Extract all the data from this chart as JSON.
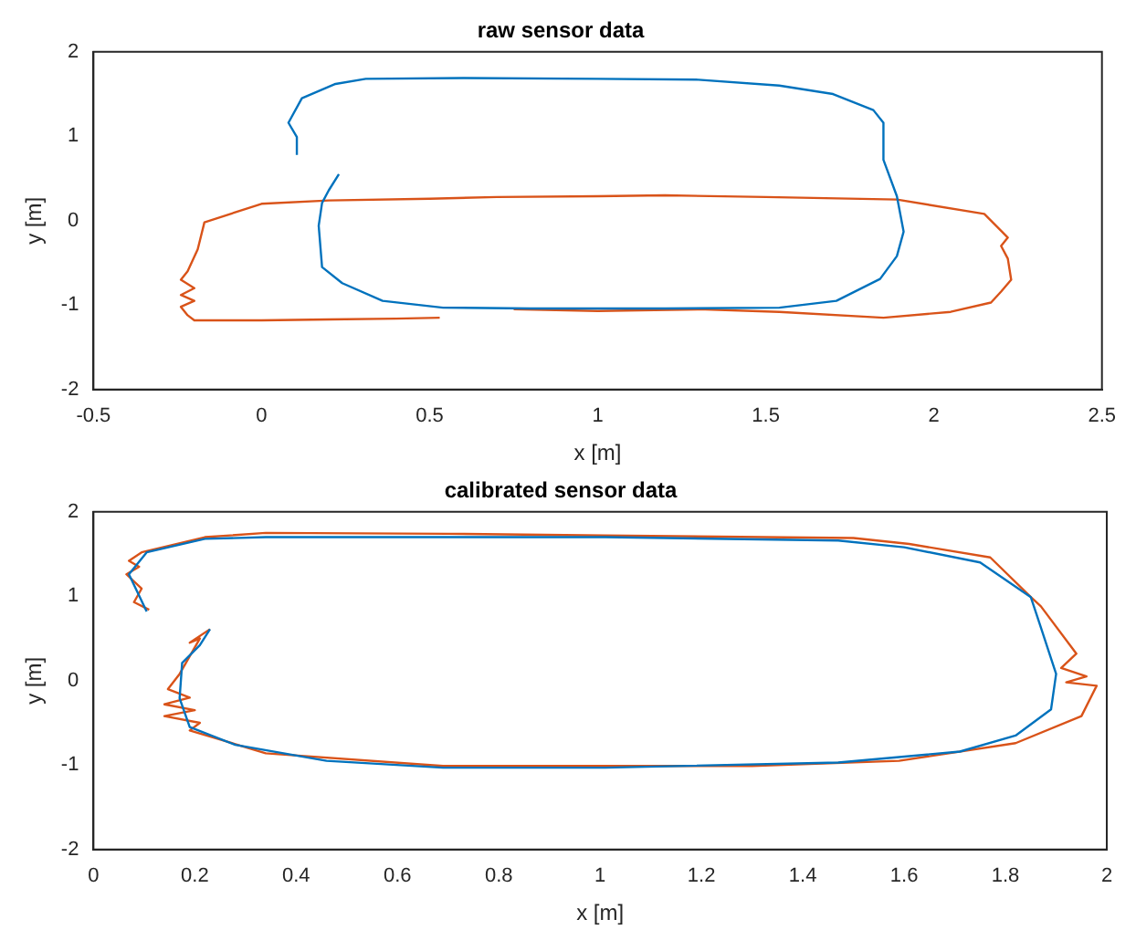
{
  "chart_data": [
    {
      "type": "line",
      "title": "raw sensor data",
      "xlabel": "x [m]",
      "ylabel": "y [m]",
      "xlim": [
        -0.5,
        2.5
      ],
      "ylim": [
        -2,
        2
      ],
      "xticks": [
        -0.5,
        0,
        0.5,
        1,
        1.5,
        2,
        2.5
      ],
      "yticks": [
        -2,
        -1,
        0,
        1,
        2
      ],
      "series": [
        {
          "color": "#0072bd",
          "x": [
            0.105,
            0.105,
            0.08,
            0.12,
            0.22,
            0.31,
            0.6,
            1.0,
            1.3,
            1.54,
            1.7,
            1.82,
            1.85,
            1.85,
            1.89,
            1.91,
            1.89,
            1.84,
            1.71,
            1.54,
            1.2,
            0.8,
            0.54,
            0.36,
            0.24,
            0.18,
            0.17,
            0.18,
            0.2,
            0.23
          ],
          "values": [
            0.78,
            0.99,
            1.16,
            1.45,
            1.62,
            1.68,
            1.69,
            1.68,
            1.67,
            1.6,
            1.5,
            1.31,
            1.16,
            0.72,
            0.29,
            -0.13,
            -0.42,
            -0.69,
            -0.95,
            -1.03,
            -1.04,
            -1.04,
            -1.03,
            -0.95,
            -0.74,
            -0.55,
            -0.06,
            0.21,
            0.36,
            0.55
          ]
        },
        {
          "color": "#d95319",
          "x": [
            0.75,
            1.0,
            1.3,
            1.54,
            1.85,
            2.05,
            2.17,
            2.2,
            2.23,
            2.22,
            2.2,
            2.22,
            2.15,
            1.89,
            1.5,
            1.2,
            1.0,
            0.7,
            0.5,
            0.2,
            0,
            -0.17,
            -0.19,
            -0.22,
            -0.24,
            -0.2,
            -0.24,
            -0.2,
            -0.24,
            -0.22,
            -0.2,
            0.0,
            0.2,
            0.4,
            0.53
          ],
          "values": [
            -1.05,
            -1.07,
            -1.05,
            -1.08,
            -1.15,
            -1.08,
            -0.97,
            -0.84,
            -0.7,
            -0.45,
            -0.3,
            -0.2,
            0.08,
            0.25,
            0.28,
            0.3,
            0.29,
            0.28,
            0.26,
            0.24,
            0.2,
            -0.02,
            -0.34,
            -0.6,
            -0.7,
            -0.8,
            -0.88,
            -0.95,
            -1.02,
            -1.12,
            -1.18,
            -1.18,
            -1.17,
            -1.16,
            -1.15
          ]
        }
      ]
    },
    {
      "type": "line",
      "title": "calibrated sensor data",
      "xlabel": "x [m]",
      "ylabel": "y [m]",
      "xlim": [
        0,
        2
      ],
      "ylim": [
        -2,
        2
      ],
      "xticks": [
        0,
        0.2,
        0.4,
        0.6,
        0.8,
        1,
        1.2,
        1.4,
        1.6,
        1.8,
        2
      ],
      "yticks": [
        -2,
        -1,
        0,
        1,
        2
      ],
      "series": [
        {
          "color": "#0072bd",
          "x": [
            0.105,
            0.07,
            0.105,
            0.22,
            0.34,
            0.7,
            1.01,
            1.47,
            1.6,
            1.75,
            1.85,
            1.87,
            1.9,
            1.89,
            1.82,
            1.71,
            1.47,
            1.01,
            0.69,
            0.46,
            0.28,
            0.19,
            0.17,
            0.175,
            0.21,
            0.23
          ],
          "values": [
            0.82,
            1.26,
            1.52,
            1.68,
            1.7,
            1.7,
            1.7,
            1.66,
            1.58,
            1.4,
            0.99,
            0.63,
            0.08,
            -0.34,
            -0.65,
            -0.84,
            -0.97,
            -1.03,
            -1.03,
            -0.95,
            -0.76,
            -0.55,
            -0.21,
            0.21,
            0.42,
            0.61
          ]
        },
        {
          "color": "#d95319",
          "x": [
            0.11,
            0.08,
            0.095,
            0.065,
            0.09,
            0.07,
            0.095,
            0.22,
            0.34,
            0.7,
            1.01,
            1.5,
            1.61,
            1.77,
            1.85,
            1.87,
            1.94,
            1.91,
            1.96,
            1.92,
            1.98,
            1.95,
            1.82,
            1.59,
            1.3,
            0.69,
            0.34,
            0.19,
            0.21,
            0.14,
            0.2,
            0.14,
            0.19,
            0.147,
            0.17,
            0.21,
            0.19,
            0.23
          ],
          "values": [
            0.84,
            0.93,
            1.09,
            1.26,
            1.35,
            1.42,
            1.52,
            1.7,
            1.75,
            1.74,
            1.72,
            1.69,
            1.62,
            1.46,
            0.99,
            0.88,
            0.32,
            0.15,
            0.05,
            -0.02,
            -0.06,
            -0.42,
            -0.74,
            -0.95,
            -1.01,
            -1.01,
            -0.86,
            -0.59,
            -0.5,
            -0.42,
            -0.35,
            -0.28,
            -0.2,
            -0.1,
            0.08,
            0.5,
            0.45,
            0.61
          ]
        }
      ]
    }
  ]
}
